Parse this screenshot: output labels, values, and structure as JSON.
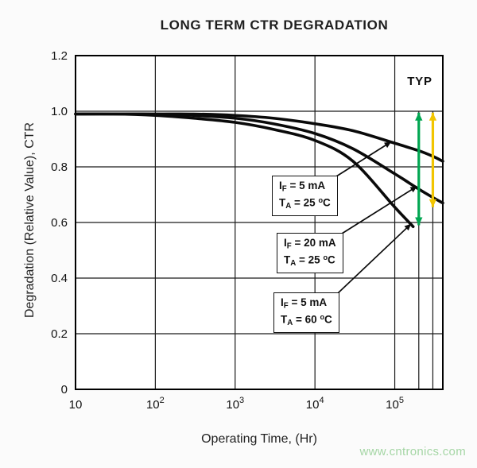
{
  "title": "LONG TERM CTR DEGRADATION",
  "typ_label": "TYP",
  "watermark": "www.cntronics.com",
  "chart_data": {
    "type": "line",
    "title": "LONG TERM CTR DEGRADATION",
    "xlabel": "Operating Time, (Hr)",
    "ylabel": "Degradation (Relative Value), CTR",
    "x_scale": "log",
    "xlim": [
      10,
      400000
    ],
    "ylim": [
      0,
      1.2
    ],
    "grid": true,
    "x_ticks": [
      {
        "value": 10,
        "base": "10",
        "exp": ""
      },
      {
        "value": 100,
        "base": "10",
        "exp": "2"
      },
      {
        "value": 1000,
        "base": "10",
        "exp": "3"
      },
      {
        "value": 10000,
        "base": "10",
        "exp": "4"
      },
      {
        "value": 100000,
        "base": "10",
        "exp": "5"
      }
    ],
    "x_minor_gridlines": {
      "values": [
        200000,
        300000
      ],
      "y_from": 0,
      "y_to": 1.0
    },
    "y_ticks": [
      {
        "value": 0,
        "label": "0"
      },
      {
        "value": 0.2,
        "label": "0.2"
      },
      {
        "value": 0.4,
        "label": "0.4"
      },
      {
        "value": 0.6,
        "label": "0.6"
      },
      {
        "value": 0.8,
        "label": "0.8"
      },
      {
        "value": 1.0,
        "label": "1.0"
      },
      {
        "value": 1.2,
        "label": "1.2"
      }
    ],
    "series": [
      {
        "name": "IF = 5 mA, TA = 25 C",
        "color": "#0a0a0a",
        "x": [
          10,
          30,
          100,
          300,
          1000,
          3000,
          10000,
          30000,
          100000,
          200000,
          300000,
          400000
        ],
        "y": [
          0.99,
          0.99,
          0.99,
          0.99,
          0.985,
          0.975,
          0.955,
          0.93,
          0.885,
          0.858,
          0.838,
          0.82
        ]
      },
      {
        "name": "IF = 20 mA, TA = 25 C",
        "color": "#0a0a0a",
        "x": [
          10,
          30,
          100,
          300,
          1000,
          3000,
          10000,
          30000,
          100000,
          200000,
          300000,
          400000
        ],
        "y": [
          0.99,
          0.99,
          0.99,
          0.985,
          0.975,
          0.955,
          0.92,
          0.865,
          0.775,
          0.72,
          0.69,
          0.67
        ]
      },
      {
        "name": "IF = 5 mA, TA = 60 C",
        "color": "#0a0a0a",
        "x": [
          10,
          30,
          100,
          300,
          1000,
          3000,
          10000,
          30000,
          100000,
          170000
        ],
        "y": [
          0.99,
          0.99,
          0.985,
          0.975,
          0.96,
          0.935,
          0.895,
          0.82,
          0.655,
          0.585
        ]
      }
    ],
    "range_arrows": [
      {
        "color": "#00a651",
        "x": 200000,
        "y1": 0.59,
        "y2": 0.995
      },
      {
        "color": "#f2c500",
        "x": 300000,
        "y1": 0.655,
        "y2": 0.995
      }
    ],
    "annotations": [
      {
        "line1": {
          "pre": "I",
          "sub": "F",
          "rest": " =  5 mA"
        },
        "line2": {
          "pre": "T",
          "sub": "A",
          "rest": " = 25 ",
          "sup": "o",
          "unit": "C"
        },
        "target": {
          "x": 90000,
          "y": 0.89
        }
      },
      {
        "line1": {
          "pre": "I",
          "sub": "F",
          "rest": " = 20 mA"
        },
        "line2": {
          "pre": "T",
          "sub": "A",
          "rest": " = 25 ",
          "sup": "o",
          "unit": "C"
        },
        "target": {
          "x": 190000,
          "y": 0.73
        }
      },
      {
        "line1": {
          "pre": "I",
          "sub": "F",
          "rest": " =  5 mA"
        },
        "line2": {
          "pre": "T",
          "sub": "A",
          "rest": " = 60 ",
          "sup": "o",
          "unit": "C"
        },
        "target": {
          "x": 160000,
          "y": 0.595
        }
      }
    ]
  }
}
